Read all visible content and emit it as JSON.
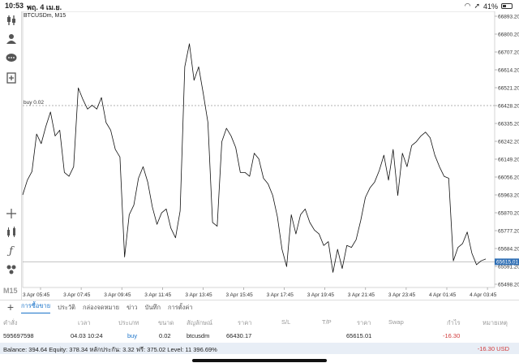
{
  "status_bar": {
    "time": "10:53",
    "date": "พฤ. 4 เม.ย.",
    "battery": "41%",
    "battery_level": 0.41
  },
  "toolbar": {
    "timeframe": "M15"
  },
  "chart": {
    "symbol": "BTCUSDm, M15",
    "order_label": "buy 0.02",
    "current_price": "65615.01",
    "colors": {
      "line": "#111111",
      "grid": "#cfcfcf",
      "price_tag": "#2f6fb5"
    }
  },
  "chart_data": {
    "type": "line",
    "y_ticks": [
      "66893.20",
      "66800.20",
      "66707.20",
      "66614.20",
      "66521.20",
      "66428.20",
      "66335.20",
      "66242.20",
      "66149.20",
      "66056.20",
      "65963.20",
      "65870.20",
      "65777.20",
      "65684.20",
      "65591.20",
      "65498.20"
    ],
    "x_ticks": [
      "3 Apr 05:45",
      "3 Apr 07:45",
      "3 Apr 09:45",
      "3 Apr 11:45",
      "3 Apr 13:45",
      "3 Apr 15:45",
      "3 Apr 17:45",
      "3 Apr 19:45",
      "3 Apr 21:45",
      "3 Apr 23:45",
      "4 Apr 01:45",
      "4 Apr 03:45"
    ],
    "ylim": [
      65498.2,
      66893.2
    ],
    "order_level": 66428.2,
    "current_level": 65615.01,
    "values": [
      65963,
      66040,
      66085,
      66280,
      66230,
      66320,
      66395,
      66270,
      66300,
      66080,
      66060,
      66110,
      66520,
      66460,
      66410,
      66430,
      66410,
      66470,
      66340,
      66300,
      66200,
      66160,
      65640,
      65860,
      65910,
      66050,
      66110,
      66030,
      65900,
      65810,
      65870,
      65890,
      65790,
      65740,
      65880,
      66630,
      66750,
      66560,
      66630,
      66490,
      66340,
      65820,
      65800,
      66240,
      66310,
      66270,
      66210,
      66080,
      66080,
      66060,
      66180,
      66150,
      66050,
      66020,
      65960,
      65850,
      65680,
      65590,
      65860,
      65760,
      65860,
      65890,
      65820,
      65780,
      65760,
      65700,
      65720,
      65560,
      65680,
      65580,
      65700,
      65690,
      65730,
      65830,
      65950,
      66000,
      66030,
      66090,
      66170,
      66040,
      66200,
      65960,
      66180,
      66110,
      66220,
      66240,
      66270,
      66290,
      66260,
      66170,
      66110,
      66060,
      66050,
      65620,
      65690,
      65710,
      65770,
      65660,
      65600,
      65620,
      65630
    ]
  },
  "bottom": {
    "tabs": [
      "การซื้อขาย",
      "ประวัติ",
      "กล่องจดหมาย",
      "ข่าว",
      "บันทึก",
      "การตั้งค่า"
    ],
    "headers": [
      "คำสั่ง",
      "เวลา",
      "ประเภท",
      "ขนาด",
      "สัญลักษณ์",
      "ราคา",
      "S/L",
      "T/P",
      "ราคา",
      "Swap",
      "กำไร",
      "หมายเหตุ"
    ],
    "row": {
      "order": "595697598",
      "time": "04.03 10:24",
      "type": "buy",
      "size": "0.02",
      "symbol": "btcusdm",
      "open_price": "66430.17",
      "price": "65615.01",
      "profit": "-16.30"
    },
    "balance_text": "Balance: 394.64 Equity: 378.34 หลักประกัน: 3.32 ฟรี: 375.02 Level: 11 396.69%",
    "balance_value": "-16.30",
    "balance_unit": "USD"
  }
}
